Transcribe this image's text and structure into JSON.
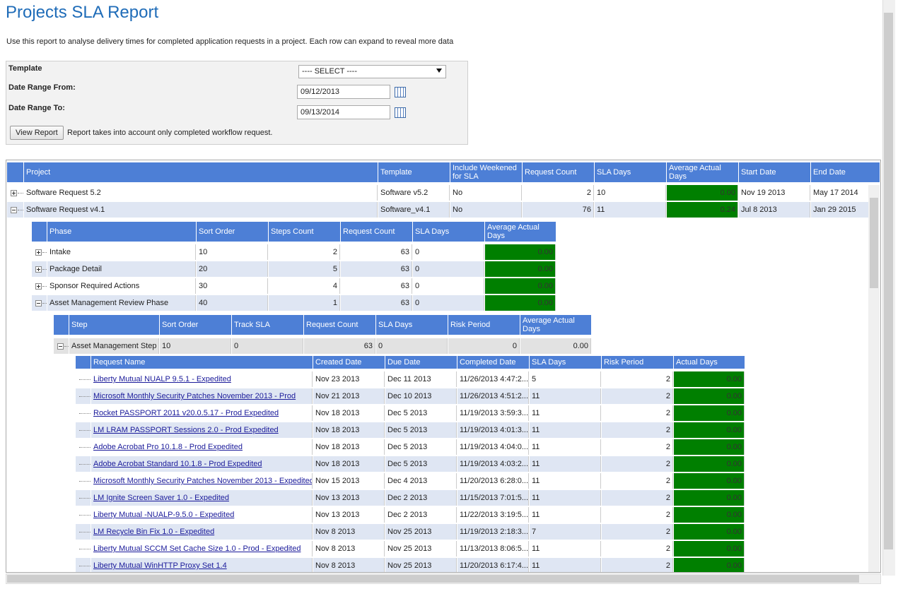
{
  "header": {
    "title": "Projects SLA Report",
    "description": "Use this report to analyse delivery times for completed application requests in a project. Each row can expand to reveal more data"
  },
  "form": {
    "template_label": "Template",
    "template_value": "---- SELECT ----",
    "from_label": "Date Range From:",
    "from_value": "09/12/2013",
    "to_label": "Date Range To:",
    "to_value": "09/13/2014",
    "button": "View Report",
    "note": "Report takes into account only completed workflow request."
  },
  "projects": {
    "columns": [
      "Project",
      "Template",
      "Include Weekened for SLA",
      "Request Count",
      "SLA Days",
      "Average Actual Days",
      "Start Date",
      "End Date"
    ],
    "rows": [
      [
        "Software Request 5.2",
        "Software v5.2",
        "No",
        "2",
        "10",
        "0.00",
        "Nov 19 2013",
        "May 17 2014"
      ],
      [
        "Software Request v4.1",
        "Software_v4.1",
        "No",
        "76",
        "11",
        "0.24",
        "Jul 8 2013",
        "Jan 29 2015"
      ]
    ]
  },
  "phases": {
    "columns": [
      "Phase",
      "Sort Order",
      "Steps Count",
      "Request Count",
      "SLA Days",
      "Average Actual Days"
    ],
    "rows": [
      [
        "Intake",
        "10",
        "2",
        "63",
        "0",
        "0.00"
      ],
      [
        "Package Detail",
        "20",
        "5",
        "63",
        "0",
        "0.00"
      ],
      [
        "Sponsor Required Actions",
        "30",
        "4",
        "63",
        "0",
        "0.00"
      ],
      [
        "Asset Management Review Phase",
        "40",
        "1",
        "63",
        "0",
        "0.00"
      ]
    ]
  },
  "steps": {
    "columns": [
      "Step",
      "Sort Order",
      "Track SLA",
      "Request Count",
      "SLA Days",
      "Risk Period",
      "Average Actual Days"
    ],
    "rows": [
      [
        "Asset Management Step",
        "10",
        "0",
        "63",
        "0",
        "0",
        "0.00"
      ]
    ]
  },
  "requests": {
    "columns": [
      "Request Name",
      "Created Date",
      "Due Date",
      "Completed Date",
      "SLA Days",
      "Risk Period",
      "Actual Days"
    ],
    "rows": [
      [
        "Liberty Mutual NUALP 9.5.1 - Expedited",
        "Nov 23 2013",
        "Dec 11 2013",
        "11/26/2013 4:47:2...",
        "5",
        "2",
        "0.00"
      ],
      [
        "Microsoft Monthly Security Patches November 2013 - Prod",
        "Nov 21 2013",
        "Dec 10 2013",
        "11/26/2013 4:51:2...",
        "11",
        "2",
        "0.00"
      ],
      [
        "Rocket PASSPORT 2011 v20.0.5.17 - Prod Expedited",
        "Nov 18 2013",
        "Dec 5 2013",
        "11/19/2013 3:59:3...",
        "11",
        "2",
        "0.00"
      ],
      [
        "LM LRAM PASSPORT Sessions 2.0 - Prod Expedited",
        "Nov 18 2013",
        "Dec 5 2013",
        "11/19/2013 4:01:3...",
        "11",
        "2",
        "0.00"
      ],
      [
        "Adobe Acrobat Pro 10.1.8 - Prod Expedited",
        "Nov 18 2013",
        "Dec 5 2013",
        "11/19/2013 4:04:0...",
        "11",
        "2",
        "0.00"
      ],
      [
        "Adobe Acrobat Standard 10.1.8 - Prod Expedited",
        "Nov 18 2013",
        "Dec 5 2013",
        "11/19/2013 4:03:2...",
        "11",
        "2",
        "0.00"
      ],
      [
        "Microsoft Monthly Security Patches November 2013 - Expedited",
        "Nov 15 2013",
        "Dec 4 2013",
        "11/20/2013 6:28:0...",
        "11",
        "2",
        "0.00"
      ],
      [
        "LM Ignite Screen Saver 1.0 - Expedited",
        "Nov 13 2013",
        "Dec 2 2013",
        "11/15/2013 7:01:5...",
        "11",
        "2",
        "0.00"
      ],
      [
        "Liberty Mutual -NUALP-9.5.0 - Expedited",
        "Nov 13 2013",
        "Dec 2 2013",
        "11/22/2013 3:19:5...",
        "11",
        "2",
        "0.00"
      ],
      [
        "LM Recycle Bin Fix 1.0 - Expedited",
        "Nov 8 2013",
        "Nov 25 2013",
        "11/19/2013 2:18:3...",
        "7",
        "2",
        "0.00"
      ],
      [
        "Liberty Mutual SCCM Set Cache Size 1.0 - Prod - Expedited",
        "Nov 8 2013",
        "Nov 25 2013",
        "11/13/2013 8:06:5...",
        "11",
        "2",
        "0.00"
      ],
      [
        "Liberty Mutual WinHTTP Proxy Set 1.4",
        "Nov 8 2013",
        "Nov 25 2013",
        "11/20/2013 6:17:4...",
        "11",
        "2",
        "0.00"
      ]
    ]
  }
}
